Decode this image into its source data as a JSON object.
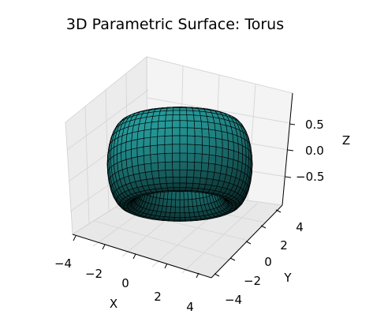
{
  "chart_data": {
    "type": "surface",
    "projection": "3d",
    "title": "3D Parametric Surface: Torus",
    "xlabel": "X",
    "ylabel": "Y",
    "zlabel": "Z",
    "xlim": [
      -4.2,
      4.2
    ],
    "ylim": [
      -4.2,
      4.2
    ],
    "zlim": [
      -1.0,
      1.0
    ],
    "x_ticks": [
      "−4",
      "−2",
      "0",
      "2",
      "4"
    ],
    "y_ticks": [
      "−4",
      "−2",
      "0",
      "2",
      "4"
    ],
    "z_ticks": [
      "−0.5",
      "0.0",
      "0.5"
    ],
    "surface": {
      "shape": "torus",
      "major_radius": 3,
      "minor_radius": 1,
      "face_color": "#2aa7a7",
      "edge_color": "#000000",
      "grid": true
    }
  }
}
